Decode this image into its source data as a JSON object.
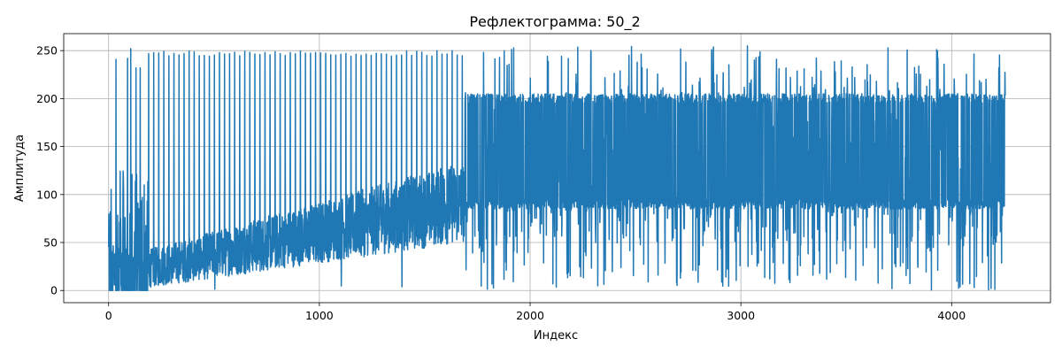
{
  "chart_data": {
    "type": "line",
    "title": "Рефлектограмма: 50_2",
    "xlabel": "Индекс",
    "ylabel": "Амплитуда",
    "xlim": [
      -213,
      4469
    ],
    "ylim": [
      -12.7,
      267.7
    ],
    "x_ticks": [
      0,
      1000,
      2000,
      3000,
      4000
    ],
    "x_tick_labels": [
      "0",
      "1000",
      "2000",
      "3000",
      "4000"
    ],
    "y_ticks": [
      0,
      50,
      100,
      150,
      200,
      250
    ],
    "y_tick_labels": [
      "0",
      "50",
      "100",
      "150",
      "200",
      "250"
    ],
    "grid": true,
    "series": [
      {
        "color": "#1f77b4",
        "n_points": 4256,
        "x_start": 0,
        "x_step": 1,
        "segments": [
          {
            "x_range": [
              0,
              15
            ],
            "pattern": "spikes",
            "low": 0,
            "high": 118,
            "note_spikes_to": 118
          },
          {
            "x_range": [
              15,
              190
            ],
            "pattern": "noise",
            "low": 0,
            "high": 125,
            "peaks": [
              {
                "x": 35,
                "value": 241
              },
              {
                "x": 70,
                "value": 118
              },
              {
                "x": 90,
                "value": 242
              },
              {
                "x": 105,
                "value": 252
              },
              {
                "x": 130,
                "value": 232
              },
              {
                "x": 150,
                "value": 232
              }
            ]
          },
          {
            "x_range": [
              190,
              1690
            ],
            "pattern": "sawtooth",
            "period": 24,
            "base_start": 3,
            "base_end": 50,
            "peak": 250
          },
          {
            "x_range": [
              1690,
              4256
            ],
            "pattern": "dense",
            "low_band": 85,
            "high_band": 205,
            "min": 0,
            "max": 255
          }
        ]
      }
    ]
  }
}
